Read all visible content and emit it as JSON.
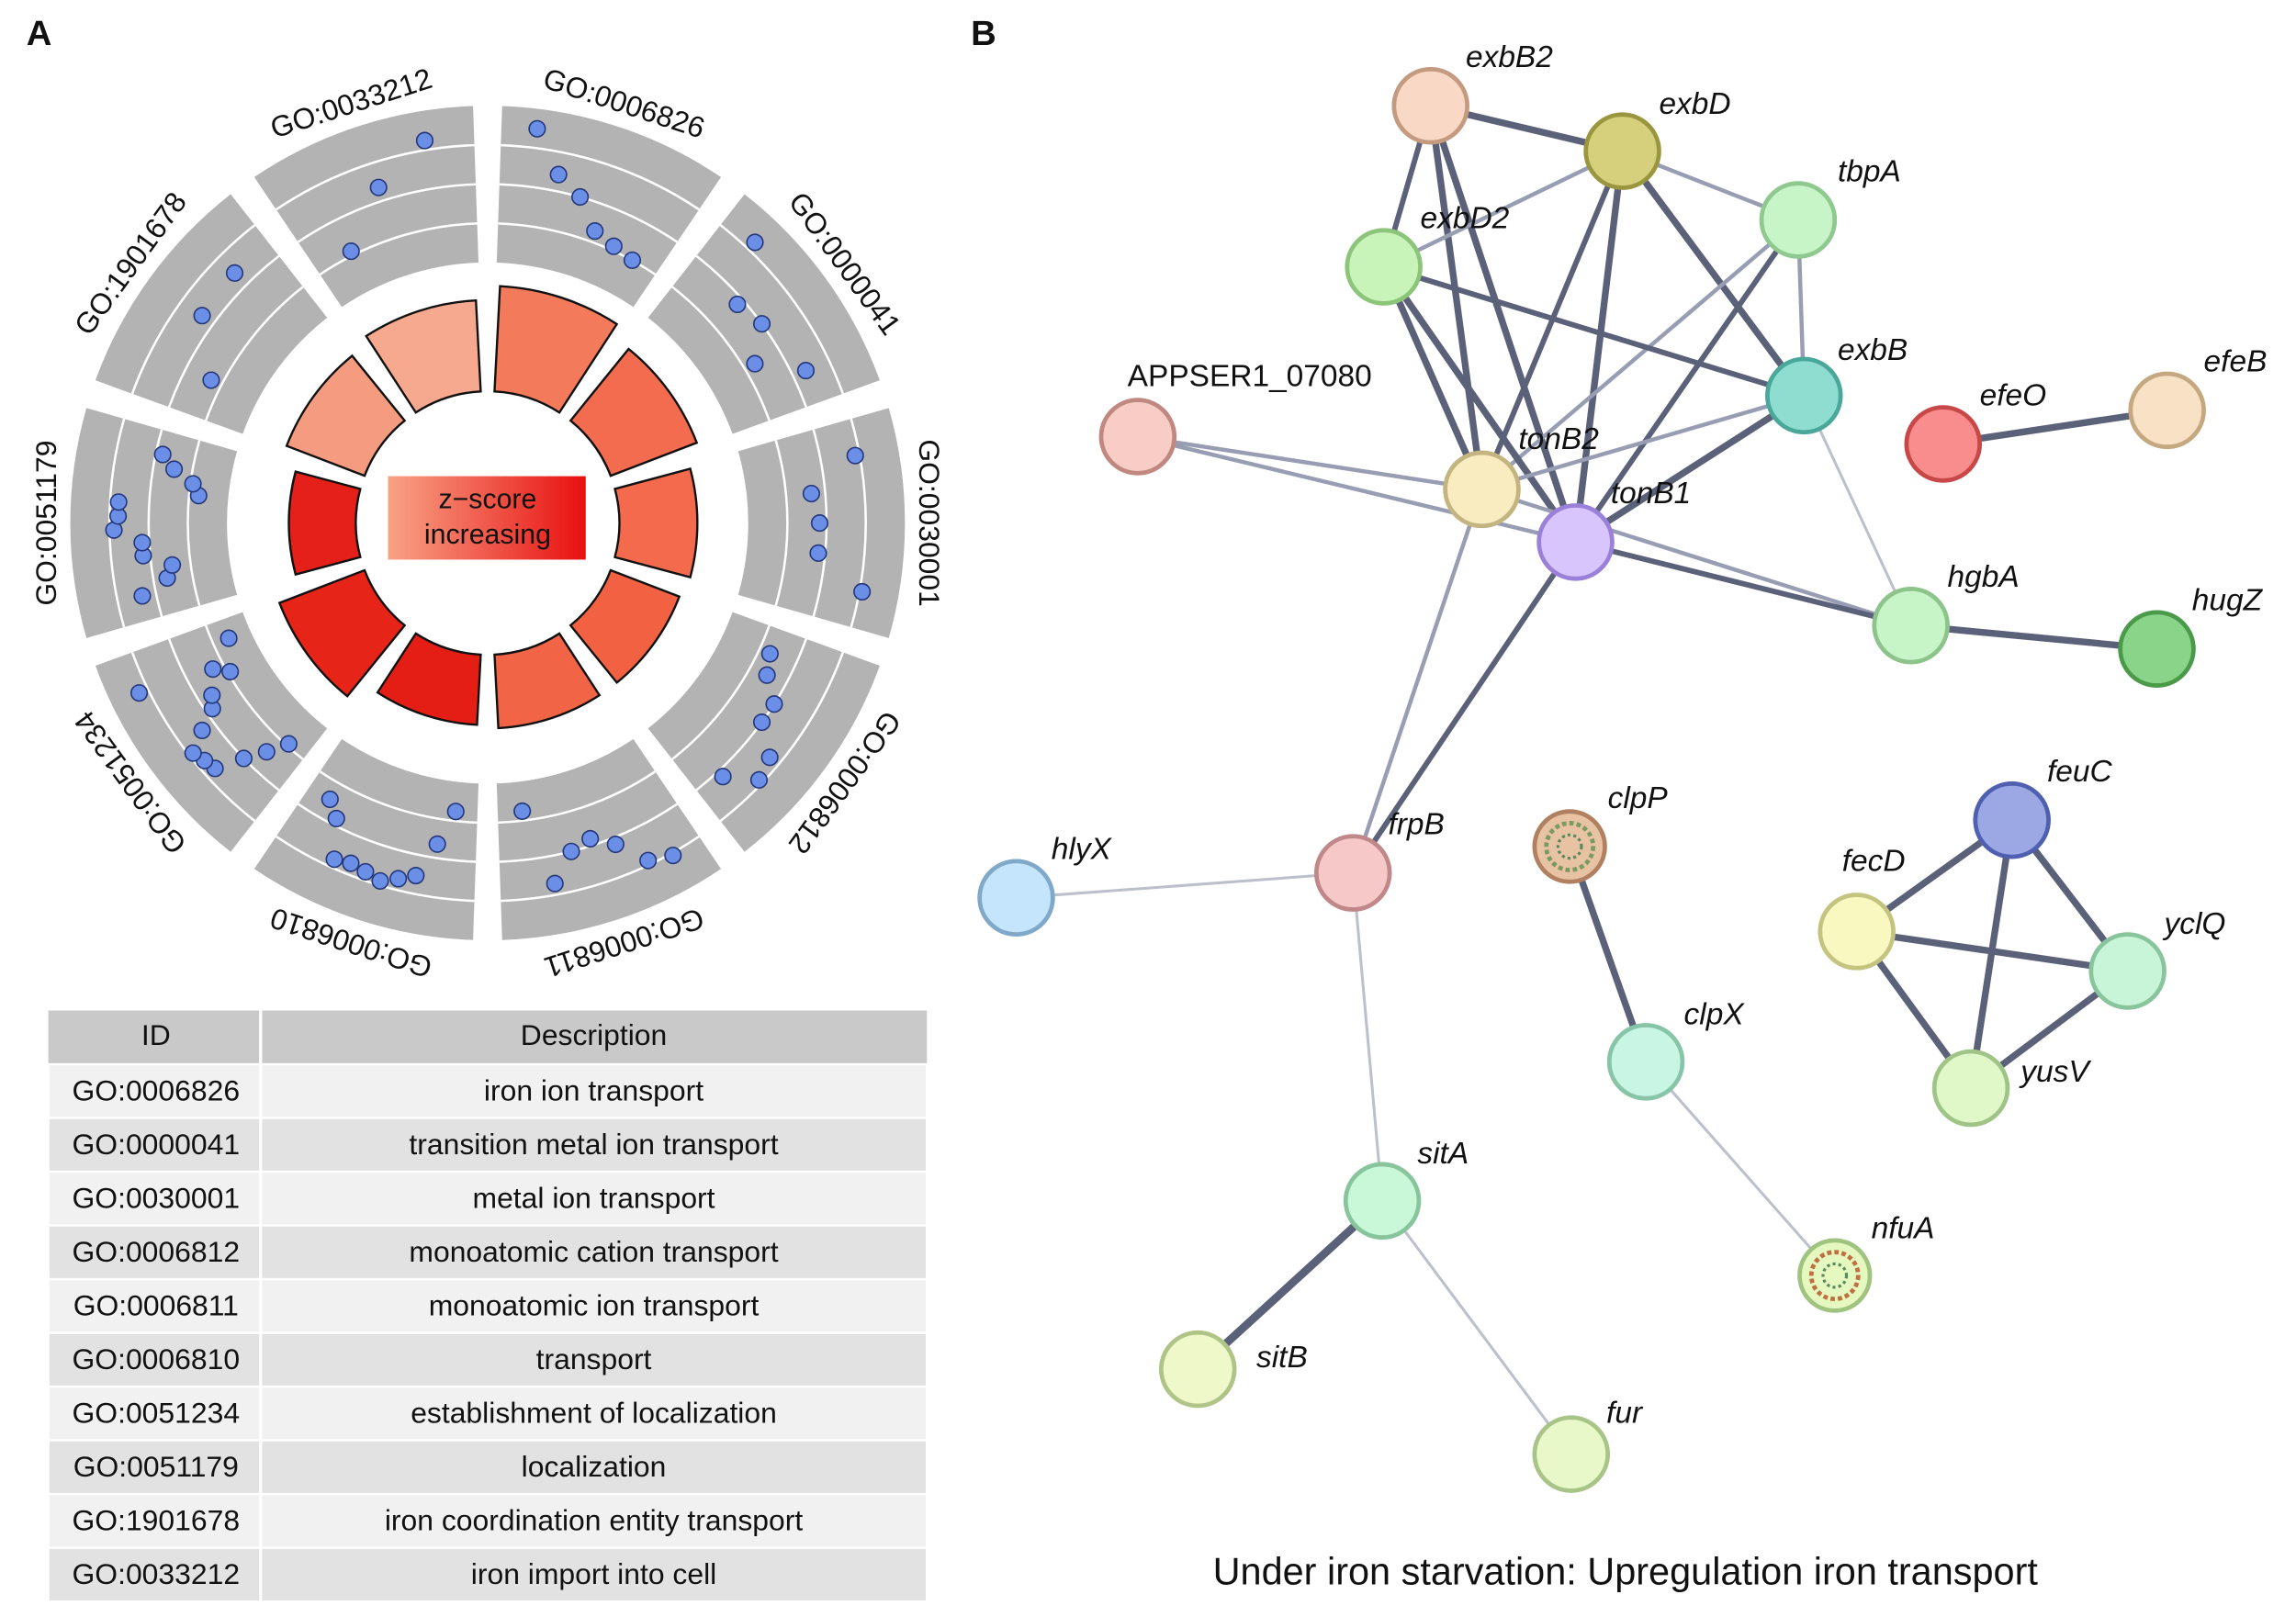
{
  "panels": [
    "A",
    "B"
  ],
  "go_circle": {
    "center_label": [
      "z−score",
      "increasing"
    ],
    "terms": [
      {
        "id": "GO:0006826",
        "bar": 0.96,
        "color": "#f47a5c",
        "dots": [
          0.92,
          0.62,
          0.5,
          0.3,
          0.25,
          0.22
        ]
      },
      {
        "id": "GO:0000041",
        "bar": 0.84,
        "color": "#f36c4f",
        "dots": [
          0.85,
          0.45,
          0.5,
          0.3,
          0.6
        ]
      },
      {
        "id": "GO:0030001",
        "bar": 0.71,
        "color": "#f36a4c",
        "dots": [
          0.75,
          0.4,
          0.45,
          0.45,
          0.8
        ]
      },
      {
        "id": "GO:0006812",
        "bar": 0.67,
        "color": "#f26242",
        "dots": [
          0.3,
          0.35,
          0.5,
          0.5,
          0.7,
          0.75,
          0.55
        ]
      },
      {
        "id": "GO:0006811",
        "bar": 0.67,
        "color": "#f26446",
        "dots": [
          0.8,
          0.75,
          0.55,
          0.45,
          0.5,
          0.7,
          0.15
        ]
      },
      {
        "id": "GO:0006810",
        "bar": 0.64,
        "color": "#e51e15",
        "dots": [
          0.15,
          0.4,
          0.65,
          0.7,
          0.75,
          0.72,
          0.7,
          0.72,
          0.45,
          0.35
        ]
      },
      {
        "id": "GO:0051234",
        "bar": 0.83,
        "color": "#e62418",
        "dots": [
          0.2,
          0.35,
          0.5,
          0.7,
          0.72,
          0.75,
          0.6,
          0.45,
          0.4,
          0.2,
          0.3,
          0.85,
          0.1
        ]
      },
      {
        "id": "GO:0051179",
        "bar": 0.61,
        "color": "#e5201a",
        "dots": [
          0.6,
          0.4,
          0.35,
          0.55,
          0.55,
          0.75,
          0.72,
          0.72,
          0.15,
          0.2,
          0.35,
          0.45
        ]
      },
      {
        "id": "GO:1901678",
        "bar": 0.76,
        "color": "#f59b80",
        "dots": [
          0.3,
          0.6,
          0.62
        ]
      },
      {
        "id": "GO:0033212",
        "bar": 0.83,
        "color": "#f7a98f",
        "dots": [
          0.25,
          0.6,
          0.85
        ]
      }
    ]
  },
  "table": {
    "header": [
      "ID",
      "Description"
    ],
    "rows": [
      [
        "GO:0006826",
        "iron ion transport"
      ],
      [
        "GO:0000041",
        "transition metal ion transport"
      ],
      [
        "GO:0030001",
        "metal ion transport"
      ],
      [
        "GO:0006812",
        "monoatomic cation transport"
      ],
      [
        "GO:0006811",
        "monoatomic ion transport"
      ],
      [
        "GO:0006810",
        "transport"
      ],
      [
        "GO:0051234",
        "establishment of localization"
      ],
      [
        "GO:0051179",
        "localization"
      ],
      [
        "GO:1901678",
        "iron coordination entity transport"
      ],
      [
        "GO:0033212",
        "iron import into cell"
      ]
    ]
  },
  "network": {
    "nodes": [
      {
        "label": "exbB2",
        "color": "#f9d9c5",
        "stroke": "#c49a80"
      },
      {
        "label": "exbD",
        "color": "#d6d07c",
        "stroke": "#9a9640"
      },
      {
        "label": "tbpA",
        "color": "#c8f5c8",
        "stroke": "#8fc98f"
      },
      {
        "label": "exbD2",
        "color": "#c9f4b9",
        "stroke": "#8cc47a"
      },
      {
        "label": "exbB",
        "color": "#8fdcd0",
        "stroke": "#4aa89a"
      },
      {
        "label": "APPSER1_07080",
        "color": "#f7cdc5",
        "stroke": "#c08880",
        "italic": false
      },
      {
        "label": "tonB2",
        "color": "#f8ecc0",
        "stroke": "#c4b480"
      },
      {
        "label": "tonB1",
        "color": "#d8c5fc",
        "stroke": "#9a80d8"
      },
      {
        "label": "efeO",
        "color": "#f98c8c",
        "stroke": "#c84848"
      },
      {
        "label": "efeB",
        "color": "#f8e1c5",
        "stroke": "#c4a880"
      },
      {
        "label": "hgbA",
        "color": "#c8f5c8",
        "stroke": "#8cc48c"
      },
      {
        "label": "hugZ",
        "color": "#88d488",
        "stroke": "#4a9a4a"
      },
      {
        "label": "frpB",
        "color": "#f7c8c8",
        "stroke": "#c08888"
      },
      {
        "label": "hlyX",
        "color": "#c5e5fc",
        "stroke": "#80a8c8"
      },
      {
        "label": "clpP",
        "color": "#e8c3a3",
        "stroke": "#b08060"
      },
      {
        "label": "clpX",
        "color": "#c8f5e4",
        "stroke": "#88c4a8"
      },
      {
        "label": "feuC",
        "color": "#9ca8e4",
        "stroke": "#5060b0"
      },
      {
        "label": "fecD",
        "color": "#f8f8c0",
        "stroke": "#c4c480"
      },
      {
        "label": "yclQ",
        "color": "#c8f5d8",
        "stroke": "#88c49c"
      },
      {
        "label": "yusV",
        "color": "#e0f8c8",
        "stroke": "#a0c488"
      },
      {
        "label": "sitA",
        "color": "#c8f8d8",
        "stroke": "#88c49c"
      },
      {
        "label": "nfuA",
        "color": "#e4f8c0",
        "stroke": "#a0c480"
      },
      {
        "label": "sitB",
        "color": "#eef8c8",
        "stroke": "#b0c488"
      },
      {
        "label": "fur",
        "color": "#e8f8c8",
        "stroke": "#a8c488"
      }
    ],
    "edges": [
      {
        "from": "exbB2",
        "to": "exbD",
        "weight": 4
      },
      {
        "from": "exbB2",
        "to": "exbD2",
        "weight": 3
      },
      {
        "from": "exbB2",
        "to": "tonB2",
        "weight": 4
      },
      {
        "from": "exbB2",
        "to": "tonB1",
        "weight": 4
      },
      {
        "from": "exbD",
        "to": "exbD2",
        "weight": 2
      },
      {
        "from": "exbD",
        "to": "tbpA",
        "weight": 2
      },
      {
        "from": "exbD",
        "to": "exbB",
        "weight": 4
      },
      {
        "from": "exbD",
        "to": "tonB2",
        "weight": 3
      },
      {
        "from": "exbD",
        "to": "tonB1",
        "weight": 4
      },
      {
        "from": "tbpA",
        "to": "exbB",
        "weight": 2
      },
      {
        "from": "tbpA",
        "to": "tonB2",
        "weight": 2
      },
      {
        "from": "tbpA",
        "to": "tonB1",
        "weight": 3
      },
      {
        "from": "exbD2",
        "to": "tonB2",
        "weight": 4
      },
      {
        "from": "exbD2",
        "to": "tonB1",
        "weight": 4
      },
      {
        "from": "exbD2",
        "to": "exbB",
        "weight": 3
      },
      {
        "from": "exbB",
        "to": "tonB2",
        "weight": 2
      },
      {
        "from": "exbB",
        "to": "tonB1",
        "weight": 4
      },
      {
        "from": "exbB",
        "to": "hgbA",
        "weight": 1
      },
      {
        "from": "APPSER1_07080",
        "to": "tonB2",
        "weight": 2
      },
      {
        "from": "APPSER1_07080",
        "to": "tonB1",
        "weight": 2
      },
      {
        "from": "tonB2",
        "to": "hgbA",
        "weight": 2
      },
      {
        "from": "tonB1",
        "to": "hgbA",
        "weight": 3
      },
      {
        "from": "tonB2",
        "to": "frpB",
        "weight": 2
      },
      {
        "from": "tonB1",
        "to": "frpB",
        "weight": 3
      },
      {
        "from": "efeO",
        "to": "efeB",
        "weight": 4
      },
      {
        "from": "hgbA",
        "to": "hugZ",
        "weight": 4
      },
      {
        "from": "frpB",
        "to": "hlyX",
        "weight": 1
      },
      {
        "from": "frpB",
        "to": "sitA",
        "weight": 1
      },
      {
        "from": "clpP",
        "to": "clpX",
        "weight": 4
      },
      {
        "from": "clpX",
        "to": "nfuA",
        "weight": 1
      },
      {
        "from": "feuC",
        "to": "fecD",
        "weight": 4
      },
      {
        "from": "feuC",
        "to": "yclQ",
        "weight": 4
      },
      {
        "from": "feuC",
        "to": "yusV",
        "weight": 4
      },
      {
        "from": "fecD",
        "to": "yclQ",
        "weight": 4
      },
      {
        "from": "fecD",
        "to": "yusV",
        "weight": 4
      },
      {
        "from": "yclQ",
        "to": "yusV",
        "weight": 4
      },
      {
        "from": "sitA",
        "to": "sitB",
        "weight": 5
      },
      {
        "from": "sitA",
        "to": "fur",
        "weight": 1
      }
    ],
    "caption": "Under iron starvation: Upregulation iron transport"
  }
}
